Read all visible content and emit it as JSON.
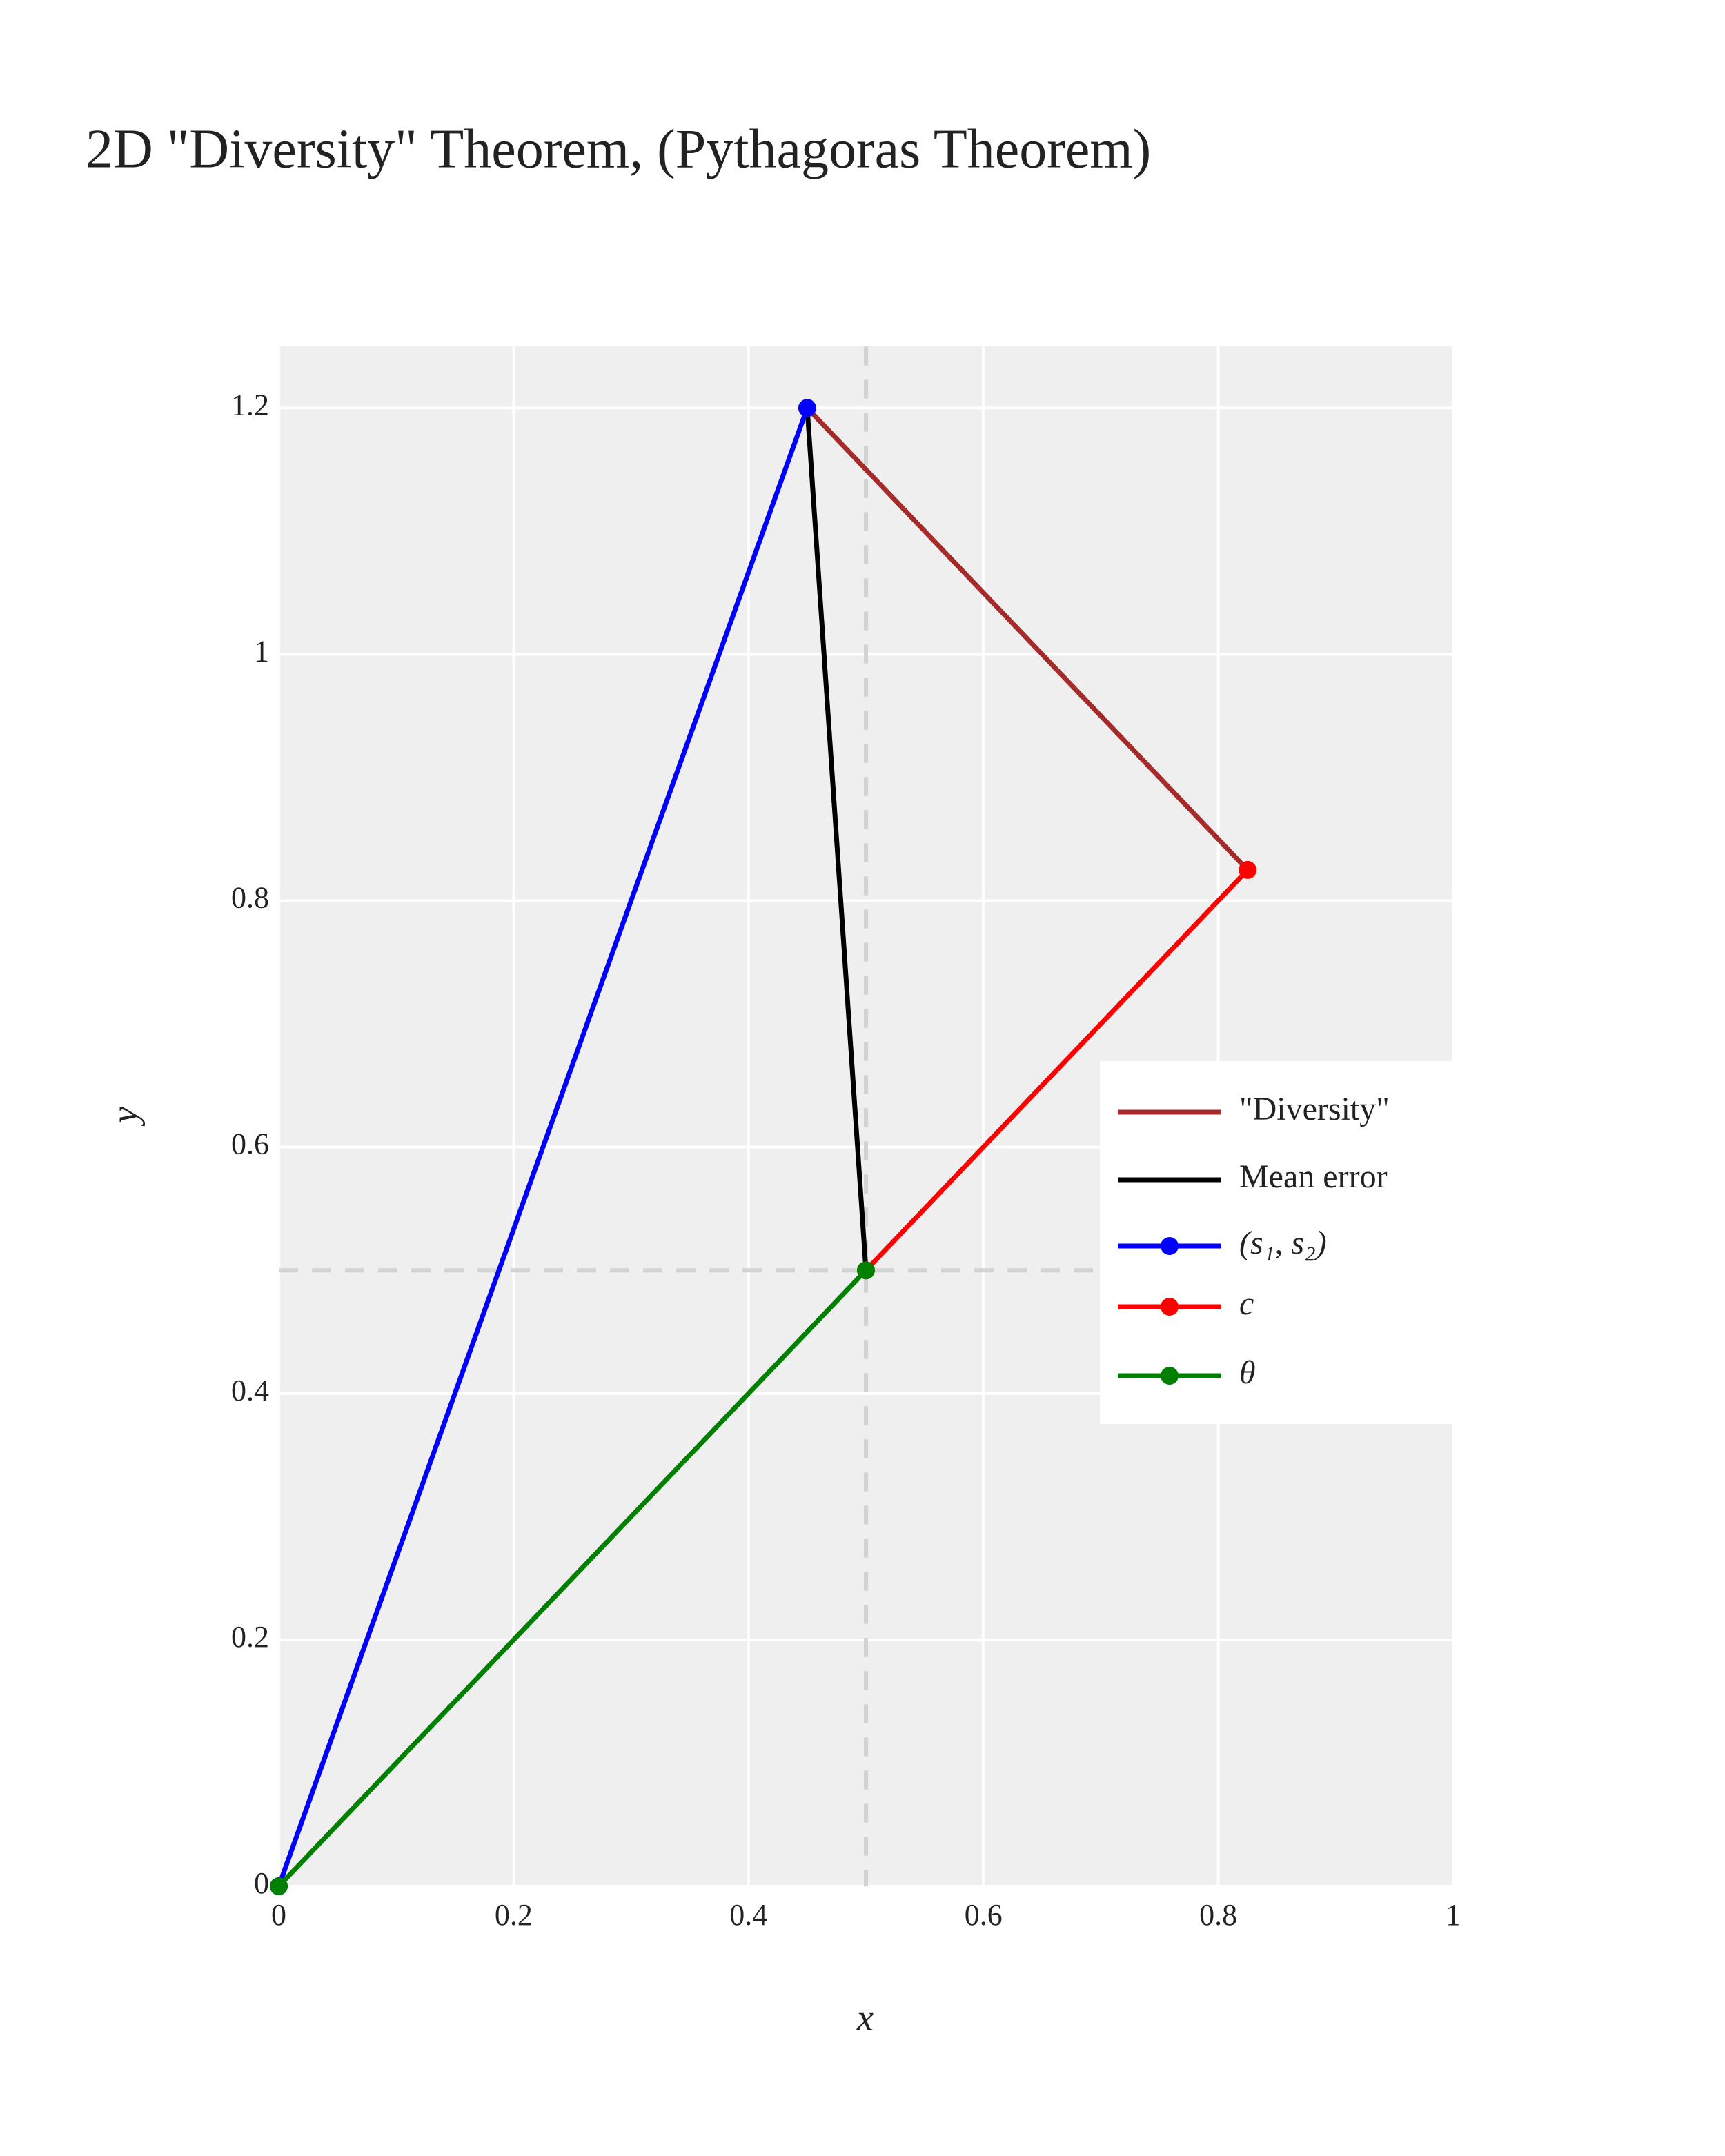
{
  "chart_data": {
    "type": "line",
    "title": "2D \"Diversity\" Theorem, (Pythagoras Theorem)",
    "x_label": "x",
    "y_label": "y",
    "xlim": [
      0,
      1
    ],
    "ylim": [
      0,
      1.25
    ],
    "xticks": [
      0,
      0.2,
      0.4,
      0.6,
      0.8,
      1
    ],
    "yticks": [
      0,
      0.2,
      0.4,
      0.6,
      0.8,
      1,
      1.2
    ],
    "grid": true,
    "legend_position": "right",
    "vlines": [
      0.5
    ],
    "hlines": [
      0.5
    ],
    "reference_color": "#d3d3d3",
    "series": [
      {
        "name": "\"Diversity\"",
        "color": "#a52a2a",
        "markers": false,
        "x": [
          0.45,
          0.825
        ],
        "values": [
          1.2,
          0.825
        ]
      },
      {
        "name": "Mean error",
        "color": "#000000",
        "markers": false,
        "x": [
          0.45,
          0.5
        ],
        "values": [
          1.2,
          0.5
        ]
      },
      {
        "name": "(s₁, s₂)",
        "color": "#0000ff",
        "markers": true,
        "x": [
          0,
          0.45
        ],
        "values": [
          0,
          1.2
        ]
      },
      {
        "name": "c",
        "color": "#ff0000",
        "markers": true,
        "x": [
          0.5,
          0.825
        ],
        "values": [
          0.5,
          0.825
        ]
      },
      {
        "name": "θ",
        "color": "#008000",
        "markers": true,
        "x": [
          0,
          0.5
        ],
        "values": [
          0,
          0.5
        ]
      }
    ]
  }
}
